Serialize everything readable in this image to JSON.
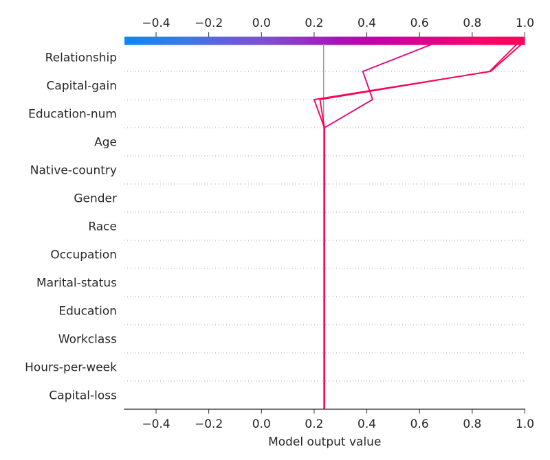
{
  "chart_data": {
    "type": "line",
    "variant": "shap-decision-plot",
    "title": "",
    "xlabel": "Model output value",
    "xlim": [
      -0.52,
      1.0
    ],
    "x_ticks": [
      -0.4,
      -0.2,
      0.0,
      0.2,
      0.4,
      0.6,
      0.8,
      1.0
    ],
    "x_tick_labels": [
      "−0.4",
      "−0.2",
      "0.0",
      "0.2",
      "0.4",
      "0.6",
      "0.8",
      "1.0"
    ],
    "grid": true,
    "base_value": 0.236,
    "features": [
      "Relationship",
      "Capital-gain",
      "Education-num",
      "Age",
      "Native-country",
      "Gender",
      "Race",
      "Occupation",
      "Marital-status",
      "Education",
      "Workclass",
      "Hours-per-week",
      "Capital-loss"
    ],
    "colorbar": {
      "position": "top",
      "min": -0.52,
      "max": 1.0,
      "stops": [
        [
          0,
          "#0d87f0"
        ],
        [
          0.15,
          "#3c79e7"
        ],
        [
          0.29,
          "#6e58d8"
        ],
        [
          0.342,
          "#7b52d3"
        ],
        [
          0.45,
          "#9431c6"
        ],
        [
          0.53,
          "#a713ba"
        ],
        [
          0.634,
          "#c400a4"
        ],
        [
          0.78,
          "#e20483"
        ],
        [
          0.89,
          "#f9076b"
        ],
        [
          1,
          "#ff0257"
        ]
      ]
    },
    "observations": [
      {
        "name": "observation-1",
        "final_value": 0.657,
        "color": "#e2067f",
        "positions_bottom_to_top": [
          0.239,
          0.239,
          0.239,
          0.239,
          0.239,
          0.239,
          0.239,
          0.239,
          0.239,
          0.239,
          0.239,
          0.422,
          0.385,
          0.657
        ]
      },
      {
        "name": "observation-3",
        "final_value": 0.973,
        "color": "#fd025e",
        "positions_bottom_to_top": [
          0.239,
          0.239,
          0.239,
          0.239,
          0.239,
          0.239,
          0.239,
          0.239,
          0.239,
          0.239,
          0.239,
          0.222,
          0.866,
          0.973
        ]
      },
      {
        "name": "observation-2",
        "final_value": 0.991,
        "color": "#ff0257",
        "positions_bottom_to_top": [
          0.239,
          0.239,
          0.239,
          0.239,
          0.239,
          0.239,
          0.239,
          0.239,
          0.239,
          0.239,
          0.239,
          0.2,
          0.87,
          0.991
        ]
      }
    ],
    "colors": {
      "axis": "#262626",
      "text": "#262626",
      "grid": "#aaaaaa",
      "base_line": "#999999",
      "background": "#ffffff"
    }
  }
}
